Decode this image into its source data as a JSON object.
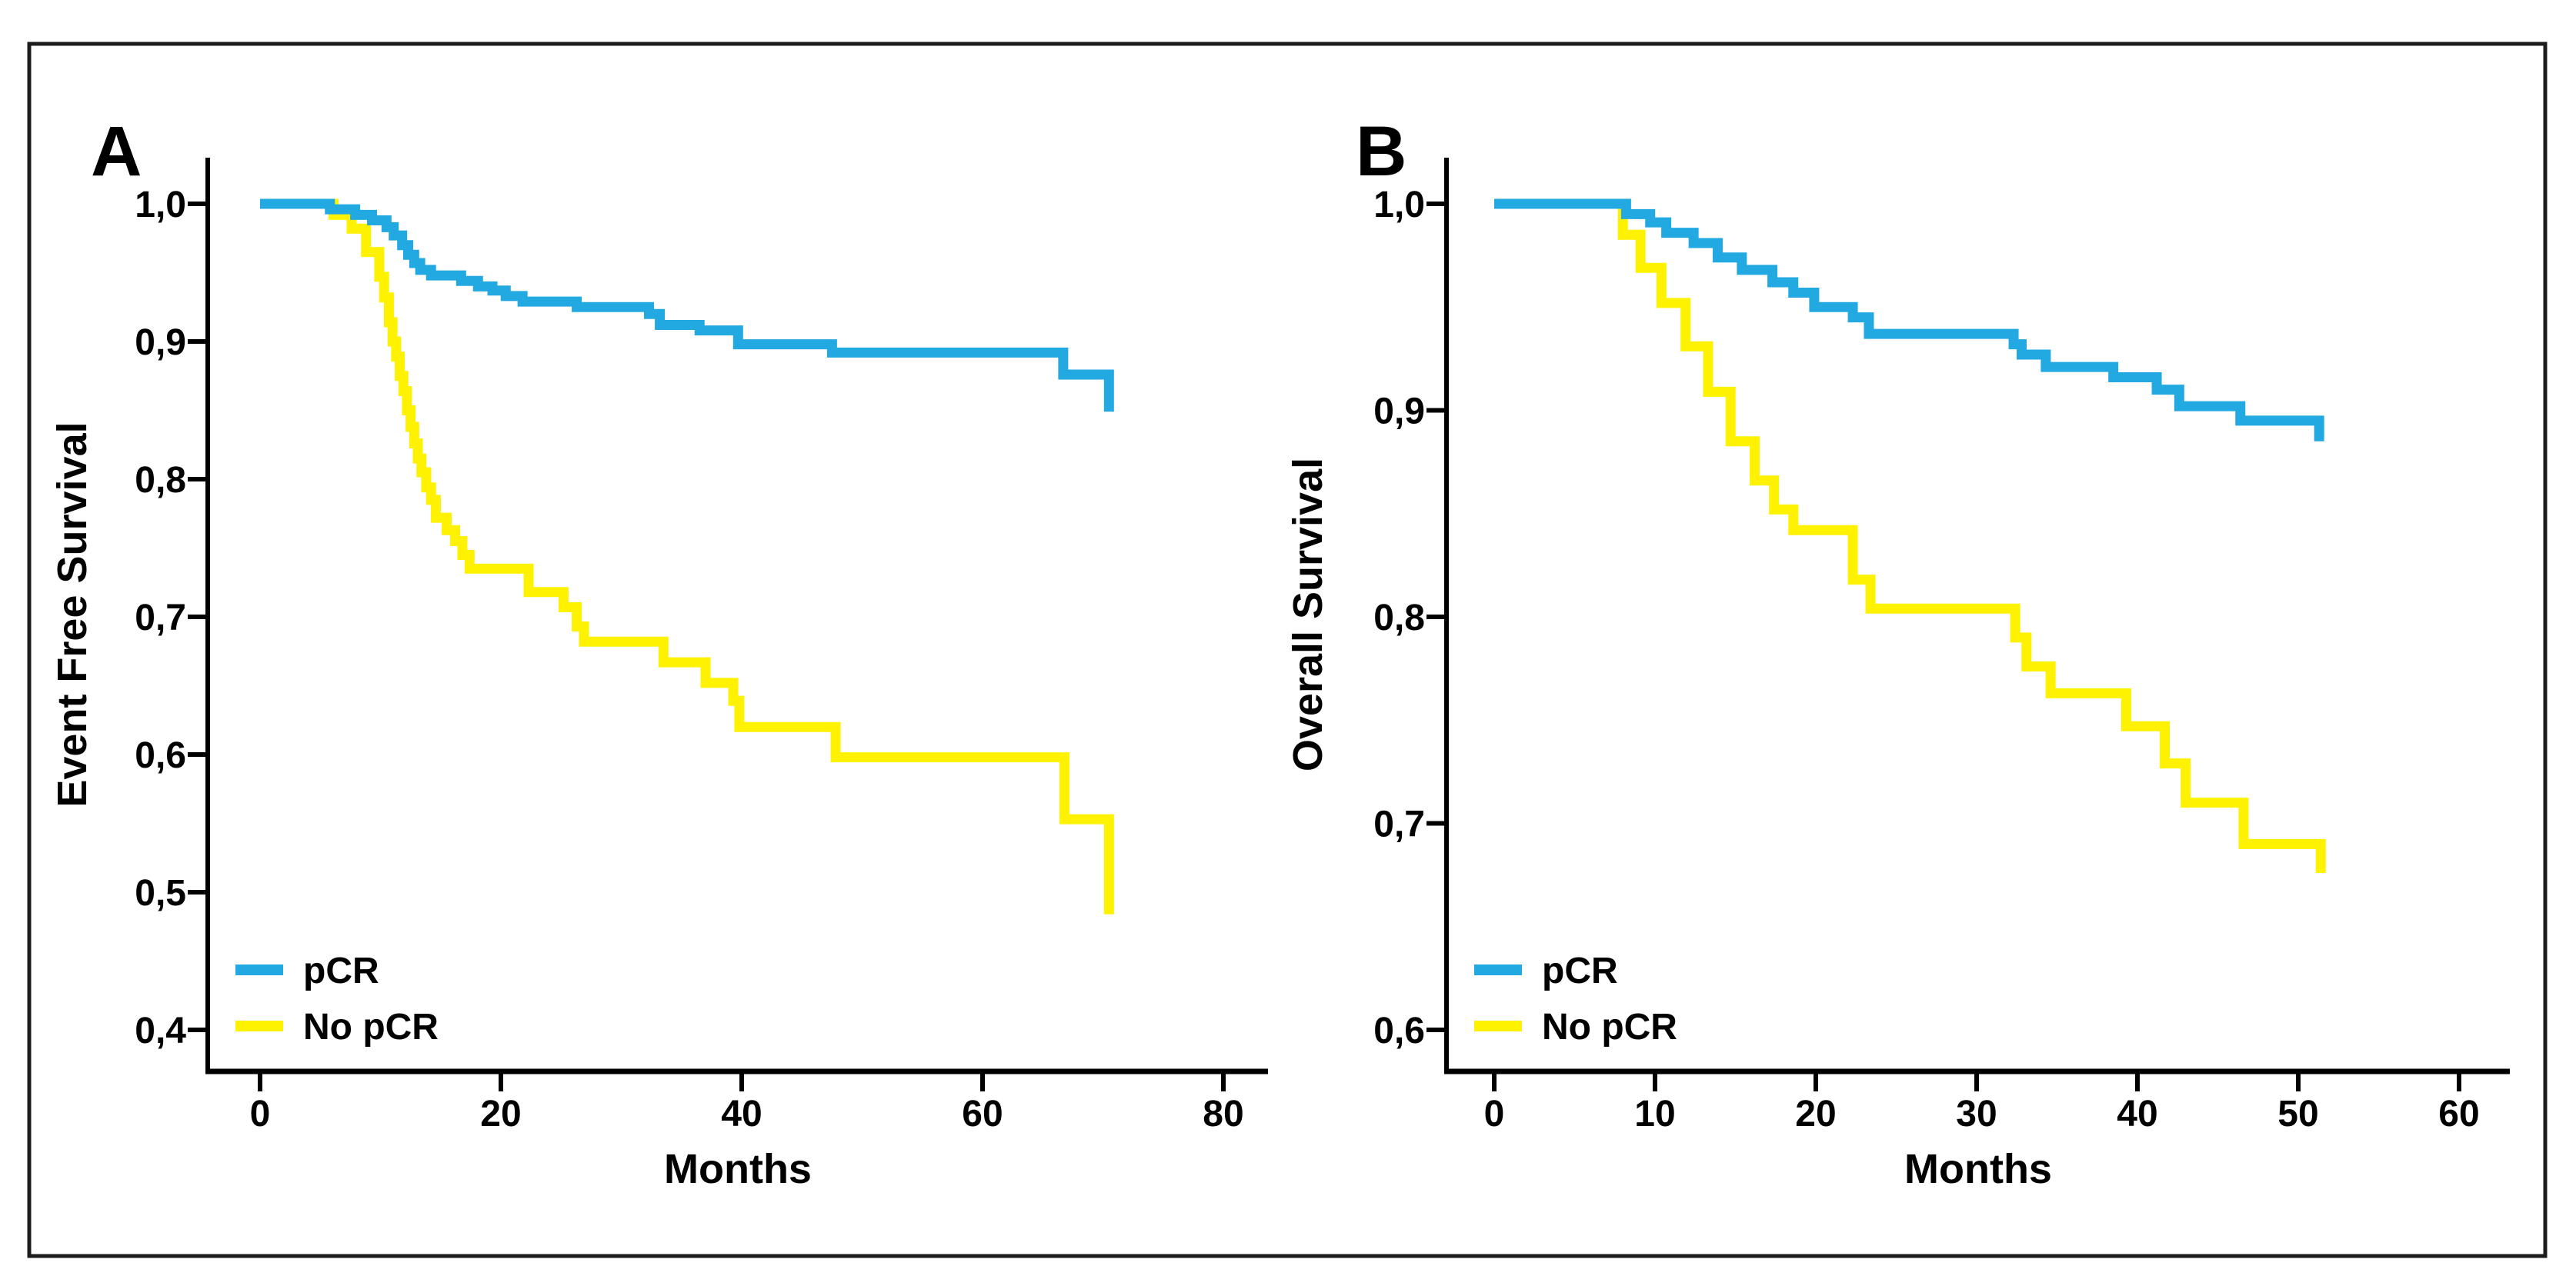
{
  "figure": {
    "background": "#ffffff",
    "border_color": "#1c1c1c",
    "axis_color": "#000000",
    "text_color": "#000000"
  },
  "chart_data": [
    {
      "panel_label": "A",
      "type": "line",
      "subtype": "kaplan-meier-step",
      "title": "",
      "xlabel": "Months",
      "ylabel": "Event Free Survival",
      "xlim": [
        0,
        80
      ],
      "ylim": [
        0.37,
        1.03
      ],
      "grid": false,
      "legend_position": "lower-left",
      "xticks": [
        {
          "value": 0,
          "label": "0"
        },
        {
          "value": 20,
          "label": "20"
        },
        {
          "value": 40,
          "label": "40"
        },
        {
          "value": 60,
          "label": "60"
        },
        {
          "value": 80,
          "label": "80"
        }
      ],
      "yticks": [
        {
          "value": 1.0,
          "label": "1,0"
        },
        {
          "value": 0.9,
          "label": "0,9"
        },
        {
          "value": 0.8,
          "label": "0,8"
        },
        {
          "value": 0.7,
          "label": "0,7"
        },
        {
          "value": 0.6,
          "label": "0,6"
        },
        {
          "value": 0.5,
          "label": "0,5"
        },
        {
          "value": 0.4,
          "label": "0,4"
        }
      ],
      "series": [
        {
          "name": "No pCR",
          "color": "#fff200",
          "steps": [
            [
              0,
              1.0
            ],
            [
              6.1,
              0.992
            ],
            [
              7.6,
              0.982
            ],
            [
              8.8,
              0.965
            ],
            [
              9.9,
              0.947
            ],
            [
              10.3,
              0.932
            ],
            [
              10.7,
              0.914
            ],
            [
              11.0,
              0.9
            ],
            [
              11.3,
              0.889
            ],
            [
              11.6,
              0.875
            ],
            [
              11.9,
              0.864
            ],
            [
              12.2,
              0.85
            ],
            [
              12.5,
              0.838
            ],
            [
              12.8,
              0.826
            ],
            [
              13.1,
              0.815
            ],
            [
              13.4,
              0.805
            ],
            [
              13.8,
              0.794
            ],
            [
              14.2,
              0.785
            ],
            [
              14.6,
              0.772
            ],
            [
              15.5,
              0.763
            ],
            [
              16.2,
              0.755
            ],
            [
              16.8,
              0.745
            ],
            [
              17.4,
              0.735
            ],
            [
              22.3,
              0.718
            ],
            [
              25.2,
              0.707
            ],
            [
              26.3,
              0.693
            ],
            [
              26.9,
              0.682
            ],
            [
              33.5,
              0.667
            ],
            [
              37.0,
              0.652
            ],
            [
              39.3,
              0.639
            ],
            [
              39.8,
              0.62
            ],
            [
              47.8,
              0.598
            ],
            [
              66.8,
              0.553
            ],
            [
              70.5,
              0.484
            ]
          ]
        },
        {
          "name": "pCR",
          "color": "#22a9e1",
          "steps": [
            [
              0,
              1.0
            ],
            [
              5.8,
              0.996
            ],
            [
              7.9,
              0.992
            ],
            [
              9.3,
              0.988
            ],
            [
              10.5,
              0.983
            ],
            [
              11.1,
              0.977
            ],
            [
              11.8,
              0.97
            ],
            [
              12.3,
              0.963
            ],
            [
              12.8,
              0.957
            ],
            [
              13.3,
              0.952
            ],
            [
              14.2,
              0.948
            ],
            [
              16.7,
              0.944
            ],
            [
              18.1,
              0.94
            ],
            [
              19.3,
              0.937
            ],
            [
              20.4,
              0.933
            ],
            [
              21.8,
              0.929
            ],
            [
              26.3,
              0.925
            ],
            [
              32.3,
              0.92
            ],
            [
              33.2,
              0.912
            ],
            [
              36.5,
              0.908
            ],
            [
              39.7,
              0.898
            ],
            [
              47.5,
              0.892
            ],
            [
              66.7,
              0.876
            ],
            [
              70.5,
              0.849
            ]
          ]
        }
      ],
      "legend": [
        {
          "name": "pCR",
          "color": "#22a9e1"
        },
        {
          "name": "No pCR",
          "color": "#fff200"
        }
      ]
    },
    {
      "panel_label": "B",
      "type": "line",
      "subtype": "kaplan-meier-step",
      "title": "",
      "xlabel": "Months",
      "ylabel": "Overall Survival",
      "xlim": [
        0,
        60
      ],
      "ylim": [
        0.57,
        1.03
      ],
      "grid": false,
      "legend_position": "lower-left",
      "xticks": [
        {
          "value": 0,
          "label": "0"
        },
        {
          "value": 10,
          "label": "10"
        },
        {
          "value": 20,
          "label": "20"
        },
        {
          "value": 30,
          "label": "30"
        },
        {
          "value": 40,
          "label": "40"
        },
        {
          "value": 50,
          "label": "50"
        },
        {
          "value": 60,
          "label": "60"
        }
      ],
      "yticks": [
        {
          "value": 1.0,
          "label": "1,0"
        },
        {
          "value": 0.9,
          "label": "0,9"
        },
        {
          "value": 0.8,
          "label": "0,8"
        },
        {
          "value": 0.7,
          "label": "0,7"
        },
        {
          "value": 0.6,
          "label": "0,6"
        }
      ],
      "series": [
        {
          "name": "No pCR",
          "color": "#fff200",
          "steps": [
            [
              0,
              1.0
            ],
            [
              8.0,
              0.985
            ],
            [
              9.1,
              0.969
            ],
            [
              10.4,
              0.952
            ],
            [
              11.9,
              0.931
            ],
            [
              13.3,
              0.909
            ],
            [
              14.7,
              0.885
            ],
            [
              16.2,
              0.866
            ],
            [
              17.4,
              0.852
            ],
            [
              18.6,
              0.842
            ],
            [
              22.3,
              0.818
            ],
            [
              23.4,
              0.804
            ],
            [
              32.4,
              0.79
            ],
            [
              33.1,
              0.776
            ],
            [
              34.6,
              0.763
            ],
            [
              39.3,
              0.747
            ],
            [
              41.7,
              0.729
            ],
            [
              43.0,
              0.71
            ],
            [
              46.6,
              0.69
            ],
            [
              51.4,
              0.676
            ]
          ]
        },
        {
          "name": "pCR",
          "color": "#22a9e1",
          "steps": [
            [
              0,
              1.0
            ],
            [
              8.2,
              0.995
            ],
            [
              9.7,
              0.991
            ],
            [
              10.7,
              0.986
            ],
            [
              12.4,
              0.981
            ],
            [
              13.9,
              0.974
            ],
            [
              15.4,
              0.968
            ],
            [
              17.3,
              0.962
            ],
            [
              18.6,
              0.957
            ],
            [
              19.9,
              0.95
            ],
            [
              22.3,
              0.945
            ],
            [
              23.3,
              0.937
            ],
            [
              32.3,
              0.932
            ],
            [
              32.8,
              0.927
            ],
            [
              34.3,
              0.921
            ],
            [
              38.5,
              0.916
            ],
            [
              41.2,
              0.91
            ],
            [
              42.6,
              0.902
            ],
            [
              46.4,
              0.895
            ],
            [
              51.3,
              0.885
            ]
          ]
        }
      ],
      "legend": [
        {
          "name": "pCR",
          "color": "#22a9e1"
        },
        {
          "name": "No pCR",
          "color": "#fff200"
        }
      ]
    }
  ]
}
